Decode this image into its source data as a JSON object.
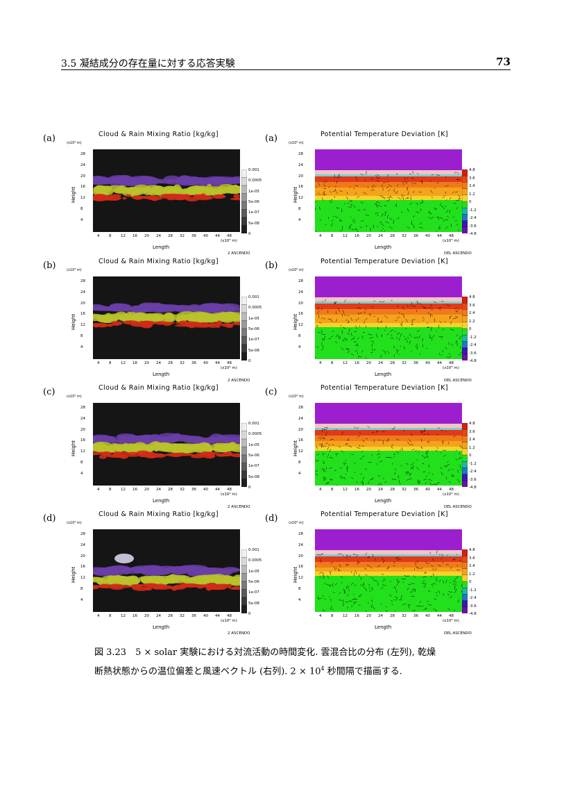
{
  "header": {
    "section_title": "3.5 凝結成分の存在量に対する応答実験",
    "page_number": "73"
  },
  "panel_common": {
    "left": {
      "title": "Cloud & Rain Mixing Ratio [kg/kg]",
      "y_unit": "(x10³ m)",
      "y_label": "Height",
      "x_label": "Length",
      "x_unit": "(x10³ m)",
      "y_ticks": [
        "28",
        "24",
        "20",
        "16",
        "12",
        "8",
        "4"
      ],
      "x_ticks": [
        "4",
        "8",
        "12",
        "16",
        "20",
        "24",
        "28",
        "32",
        "36",
        "40",
        "44",
        "48"
      ],
      "colorbar_labels": [
        "0.001",
        "0.0005",
        "1e-05",
        "5e-06",
        "1e-07",
        "5e-08",
        "0"
      ],
      "footer": "2    ASCENDO"
    },
    "right": {
      "title": "Potential Temperature Deviation [K]",
      "y_unit": "(x10³ m)",
      "y_label": "Height",
      "x_label": "Length",
      "x_unit": "(x10³ m)",
      "y_ticks": [
        "28",
        "24",
        "20",
        "16",
        "12",
        "8",
        "4"
      ],
      "x_ticks": [
        "4",
        "8",
        "12",
        "16",
        "20",
        "24",
        "28",
        "32",
        "36",
        "40",
        "44",
        "48"
      ],
      "colorbar_labels": [
        "4.8",
        "3.6",
        "2.4",
        "1.2",
        "0",
        "-1.2",
        "-2.4",
        "-3.6",
        "-4.8"
      ],
      "footer": "DEL    ASCENDO"
    }
  },
  "rows": [
    {
      "label": "(a)"
    },
    {
      "label": "(b)"
    },
    {
      "label": "(c)"
    },
    {
      "label": "(d)"
    }
  ],
  "caption": {
    "line1": "図 3.23　5 × solar 実験における対流活動の時間変化. 雲混合比の分布 (左列), 乾燥",
    "line2_a": "断熱状態からの温位偏差と風速ベクトル (右列).  2 × 10",
    "line2_sup": "4",
    "line2_b": " 秒間隔で描画する."
  }
}
